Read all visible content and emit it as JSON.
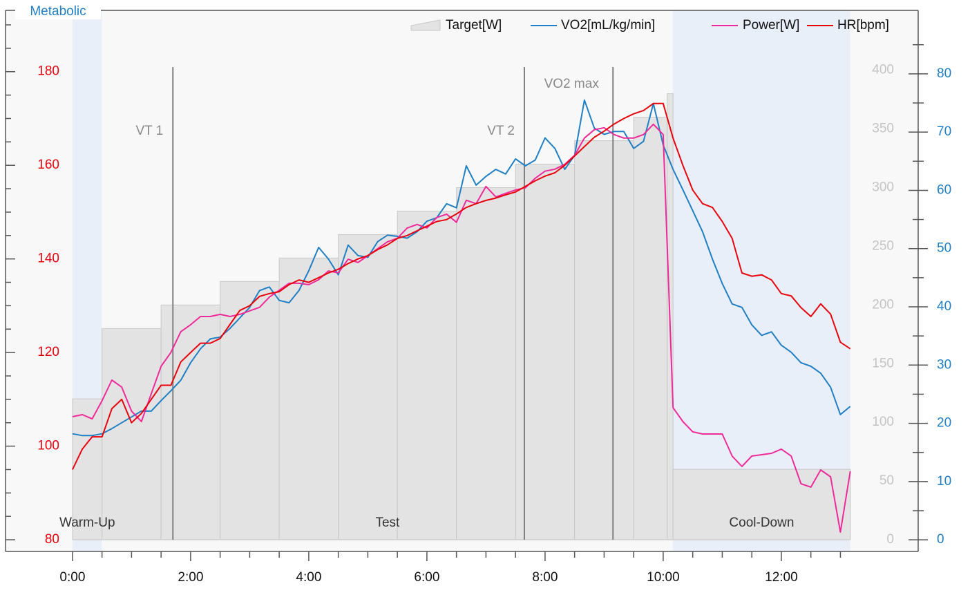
{
  "chart_data": {
    "type": "line",
    "title": "Metabolic",
    "xlim": [
      -68,
      859
    ],
    "xticks": [
      {
        "value": 0,
        "label": "0:00"
      },
      {
        "value": 120,
        "label": "2:00"
      },
      {
        "value": 240,
        "label": "4:00"
      },
      {
        "value": 360,
        "label": "6:00"
      },
      {
        "value": 480,
        "label": "8:00"
      },
      {
        "value": 600,
        "label": "10:00"
      },
      {
        "value": 720,
        "label": "12:00"
      }
    ],
    "xminorticks": [
      30,
      60,
      90,
      150,
      180,
      210,
      270,
      300,
      330,
      390,
      420,
      450,
      510,
      540,
      570,
      630,
      660,
      690,
      750,
      780
    ],
    "ylim": [
      77.5,
      193.1
    ],
    "yticks": [
      80,
      100,
      120,
      140,
      160,
      180
    ],
    "yminorticks": [
      85,
      90,
      95,
      105,
      110,
      115,
      125,
      130,
      135,
      145,
      150,
      155,
      165,
      170,
      175,
      185,
      190
    ],
    "y2lim": [
      -2,
      90.9
    ],
    "y2ticks": [
      0,
      10,
      20,
      30,
      40,
      50,
      60,
      70,
      80
    ],
    "y2minorticks": [
      5,
      15,
      25,
      35,
      45,
      55,
      65,
      75,
      85
    ],
    "y3lim": [
      -10,
      451
    ],
    "y3ticks": [
      0,
      50,
      100,
      150,
      200,
      250,
      300,
      350,
      400
    ],
    "axis_colors": {
      "y": "#e8000b",
      "y2": "#1f7fc4",
      "y3": "#c4c4c4"
    },
    "phases": [
      {
        "label": "Warm-Up",
        "start": 0,
        "end": 30,
        "color": "#e8eff9"
      },
      {
        "label": "Test",
        "start": 30,
        "end": 610,
        "color": "#f8f8f8"
      },
      {
        "label": "Cool-Down",
        "start": 610,
        "end": 790,
        "color": "#e8eff9"
      }
    ],
    "markers": [
      {
        "label": "VT 1",
        "x": 102
      },
      {
        "label": "VT 2",
        "x": 459
      },
      {
        "label": "VO2 max",
        "x": 549
      }
    ],
    "x": [
      0,
      10,
      20,
      30,
      40,
      50,
      60,
      70,
      80,
      90,
      100,
      110,
      120,
      130,
      140,
      150,
      160,
      170,
      180,
      190,
      200,
      210,
      220,
      230,
      240,
      250,
      260,
      270,
      280,
      290,
      300,
      310,
      320,
      330,
      340,
      350,
      360,
      370,
      380,
      390,
      400,
      410,
      420,
      430,
      440,
      450,
      460,
      470,
      480,
      490,
      500,
      510,
      520,
      530,
      540,
      550,
      560,
      570,
      580,
      590,
      600,
      610,
      620,
      630,
      640,
      650,
      660,
      670,
      680,
      690,
      700,
      710,
      720,
      730,
      740,
      750,
      760,
      770,
      780,
      790
    ],
    "series": [
      {
        "name": "Target[W]",
        "type": "step-area",
        "axis": "y3",
        "color": "#c8c8c8",
        "fill": "#e3e3e3",
        "x": [
          0,
          30,
          90,
          150,
          210,
          270,
          330,
          390,
          450,
          510,
          570,
          604,
          610,
          790
        ],
        "values": [
          120,
          180,
          200,
          220,
          240,
          260,
          280,
          300,
          320,
          340,
          360,
          380,
          60,
          60
        ]
      },
      {
        "name": "VO2[mL/kg/min]",
        "axis": "y2",
        "color": "#1f7fc4",
        "values": [
          18.2,
          17.9,
          17.9,
          18.2,
          19.1,
          20.1,
          21.1,
          22.1,
          22.1,
          23.9,
          25.6,
          27.4,
          30.4,
          32.8,
          34.5,
          34.8,
          36.3,
          38.1,
          39.9,
          42.8,
          43.4,
          41.1,
          40.7,
          42.8,
          46.2,
          50.2,
          48.2,
          45.5,
          50.6,
          48.8,
          48.5,
          51.2,
          52.3,
          52.1,
          51.8,
          52.9,
          54.7,
          55.3,
          57.7,
          57.0,
          64.2,
          60.9,
          62.4,
          63.6,
          62.8,
          65.4,
          64.2,
          65.2,
          69.0,
          67.2,
          63.6,
          66.0,
          75.5,
          70.7,
          69.6,
          70.1,
          70.1,
          67.2,
          68.4,
          74.9,
          67.8,
          63.6,
          60.1,
          56.5,
          52.9,
          48.2,
          44.0,
          40.5,
          39.9,
          36.9,
          35.1,
          35.7,
          33.4,
          32.2,
          30.4,
          29.8,
          28.6,
          26.2,
          21.5,
          22.9
        ]
      },
      {
        "name": "Power[W]",
        "axis": "y3",
        "color": "#ee2a9b",
        "values": [
          104.8,
          106.6,
          103,
          118.4,
          136,
          130,
          109.6,
          100.7,
          124.3,
          147.8,
          159.6,
          177.3,
          183.2,
          190.2,
          190.2,
          192,
          190.2,
          192,
          195,
          198,
          206.7,
          212.6,
          218.5,
          218.5,
          217.3,
          221.5,
          229,
          227.4,
          239,
          236.2,
          242,
          248,
          253.9,
          256.8,
          265.6,
          268.6,
          265.6,
          274.5,
          277.4,
          270.4,
          289.2,
          286.3,
          301,
          292.1,
          295.1,
          298,
          299.8,
          308,
          314,
          315.7,
          319.8,
          327.5,
          342.2,
          349.3,
          351,
          345.2,
          342.2,
          342.2,
          345.2,
          354,
          345.2,
          112.5,
          100.7,
          91.9,
          90.1,
          90.1,
          90.1,
          71.3,
          62.4,
          71.3,
          72.4,
          73.6,
          77.2,
          71.3,
          47.7,
          44.8,
          59.5,
          53.6,
          6.5,
          58.3
        ]
      },
      {
        "name": "HR[bpm]",
        "axis": "y",
        "color": "#e8000b",
        "values": [
          95,
          99.4,
          102,
          102,
          108,
          110,
          105,
          107,
          110,
          113,
          113,
          118,
          120,
          122,
          122,
          123,
          126,
          129,
          130,
          132,
          132.6,
          133,
          134.5,
          135.5,
          135,
          136,
          137,
          137.8,
          139,
          140,
          140.7,
          142,
          143,
          144.4,
          145,
          146,
          147,
          148,
          148.4,
          149.6,
          151,
          151.8,
          152.5,
          153,
          153.7,
          154.3,
          155.5,
          156.7,
          157.7,
          158.4,
          160,
          162,
          164,
          166,
          167.3,
          168.8,
          170,
          171,
          171.7,
          173.2,
          173.2,
          165.8,
          160,
          154.7,
          151.8,
          151,
          148,
          144.4,
          137,
          136.3,
          136.6,
          135.5,
          132.6,
          132.1,
          129.6,
          127.7,
          130.4,
          128.2,
          122.2,
          120.8
        ]
      }
    ]
  }
}
